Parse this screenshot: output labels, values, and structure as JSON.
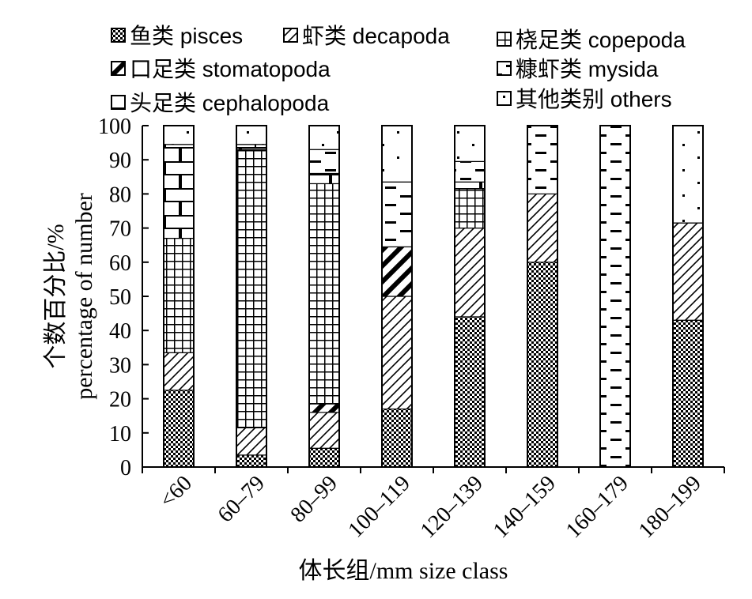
{
  "chart_data": {
    "type": "bar",
    "stacked": true,
    "xlabel": "体长组/mm size class",
    "ylabel_cn": "个数百分比/%",
    "ylabel_en": "percentage of number",
    "ylim": [
      0,
      100
    ],
    "yticks": [
      "0",
      "10",
      "20",
      "30",
      "40",
      "50",
      "60",
      "70",
      "80",
      "90",
      "100"
    ],
    "categories": [
      "<60",
      "60–79",
      "80–99",
      "100–119",
      "120–139",
      "140–159",
      "160–179",
      "180–199"
    ],
    "series": [
      {
        "name": "鱼类 pisces",
        "pattern": "checker",
        "values": [
          22.5,
          3.5,
          5.5,
          17,
          44,
          60,
          0,
          43
        ]
      },
      {
        "name": "虾类 decapoda",
        "pattern": "diag",
        "values": [
          11,
          8,
          10.5,
          33,
          26,
          20,
          0,
          28.5
        ]
      },
      {
        "name": "口足类 stomatopoda",
        "pattern": "thickdiag",
        "values": [
          0,
          0,
          2.5,
          14.5,
          0,
          0,
          0,
          0
        ]
      },
      {
        "name": "桡足类 copepoda",
        "pattern": "grid",
        "values": [
          33.5,
          81.5,
          64.5,
          0,
          11.5,
          0,
          0,
          0
        ]
      },
      {
        "name": "头足类 cephalopoda",
        "pattern": "hbrick",
        "values": [
          27.5,
          1.5,
          3,
          0,
          2,
          0,
          0,
          0
        ]
      },
      {
        "name": "糠虾类 mysida",
        "pattern": "dashes",
        "values": [
          0,
          0,
          7,
          19,
          6,
          20,
          100,
          0
        ]
      },
      {
        "name": "其他类别 others",
        "pattern": "dots",
        "values": [
          5.5,
          5.5,
          7,
          16.5,
          10.5,
          0,
          0,
          28.5
        ]
      }
    ],
    "legend_placement": "top"
  },
  "legend": [
    {
      "label": "鱼类 pisces",
      "pattern": "checker"
    },
    {
      "label": "虾类 decapoda",
      "pattern": "diag"
    },
    {
      "label": "桡足类 copepoda",
      "pattern": "grid"
    },
    {
      "label": "口足类 stomatopoda",
      "pattern": "thickdiag"
    },
    {
      "label": "糠虾类 mysida",
      "pattern": "dashes"
    },
    {
      "label": "头足类 cephalopoda",
      "pattern": "hbrick"
    },
    {
      "label": "其他类别 others",
      "pattern": "dots"
    }
  ]
}
